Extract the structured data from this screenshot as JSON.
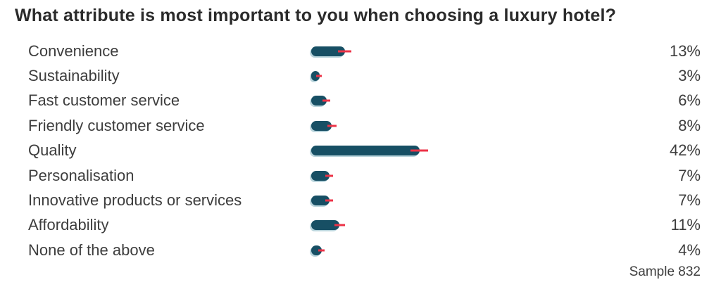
{
  "chart_data": {
    "type": "bar",
    "orientation": "horizontal",
    "title": "What attribute is most important to you when choosing a luxury hotel?",
    "categories": [
      "Convenience",
      "Sustainability",
      "Fast customer service",
      "Friendly customer service",
      "Quality",
      "Personalisation",
      "Innovative products or services",
      "Affordability",
      "None of the above"
    ],
    "values": [
      13,
      3,
      6,
      8,
      42,
      7,
      7,
      11,
      4
    ],
    "value_labels": [
      "13%",
      "3%",
      "6%",
      "8%",
      "42%",
      "7%",
      "7%",
      "11%",
      "4%"
    ],
    "error_margins": [
      2.5,
      1.1,
      1.5,
      1.8,
      3.4,
      1.6,
      1.5,
      2.1,
      1.2
    ],
    "xlabel": "",
    "ylabel": "",
    "xlim": [
      0,
      100
    ],
    "grid": false,
    "legend": false,
    "footnote": "Sample 832",
    "colors": {
      "bar": "#174f64",
      "bar_shadow": "#7fb0bf",
      "error_bar": "#ec3347",
      "title_text": "#2b2b2b",
      "label_text": "#3d3d3d",
      "background": "#ffffff"
    }
  }
}
